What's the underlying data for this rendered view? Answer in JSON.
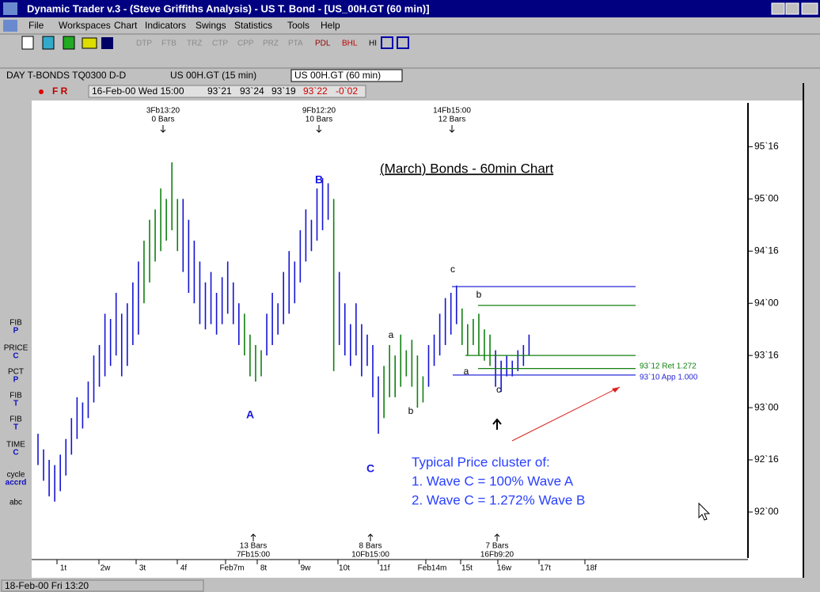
{
  "window": {
    "title": "Dynamic Trader v.3 - (Steve Griffiths Analysis) - US T. Bond - [US_00H.GT (60 min)]"
  },
  "menu": [
    "File",
    "Workspaces",
    "Chart",
    "Indicators",
    "Swings",
    "Statistics",
    "Tools",
    "Help"
  ],
  "toolbar": [
    "DTP",
    "FTB",
    "TRZ",
    "CTP",
    "CPP",
    "PRZ",
    "PTA",
    "PDL",
    "BHL",
    "HI"
  ],
  "tabs": [
    "DAY T-BONDS  TQ0300 D-D",
    "US 00H.GT (15 min)",
    "US 00H.GT (60 min)"
  ],
  "info": {
    "flags": "F R",
    "date": "16-Feb-00 Wed 15:00",
    "open": "93`21",
    "high": "93`24",
    "low": "93`19",
    "close": "93`22",
    "change": "-0`02"
  },
  "tools": [
    [
      "FIB",
      "P"
    ],
    [
      "PRICE",
      "C"
    ],
    [
      "PCT",
      "P"
    ],
    [
      "FIB",
      "T"
    ],
    [
      "FIB",
      "T"
    ],
    [
      "TIME",
      "C"
    ],
    [
      "cycle",
      "accrd"
    ],
    [
      "abc"
    ]
  ],
  "chart_data": {
    "type": "ohlc",
    "title": "(March) Bonds - 60min Chart",
    "ylim": [
      91.56,
      95.92
    ],
    "yticks": [
      {
        "value": 95.5,
        "label": "95`16"
      },
      {
        "value": 95,
        "label": "95`00"
      },
      {
        "value": 94.5,
        "label": "94`16"
      },
      {
        "value": 94,
        "label": "94`00"
      },
      {
        "value": 93.5,
        "label": "93`16"
      },
      {
        "value": 93,
        "label": "93`00"
      },
      {
        "value": 92.5,
        "label": "92`16"
      },
      {
        "value": 92,
        "label": "92`00"
      }
    ],
    "categories": [
      "1t",
      "2w",
      "3t",
      "4f",
      "Feb7m",
      "8t",
      "9w",
      "10t",
      "11f",
      "Feb14m",
      "15t",
      "16w",
      "17t",
      "18f"
    ],
    "segments": [
      {
        "color": "#1414d2",
        "high": [
          92.75,
          92.6,
          92.5,
          92.45,
          92.55,
          92.7,
          92.9,
          93.1,
          93.05,
          93.25,
          93.5,
          93.6,
          93.9,
          93.85,
          94.1,
          93.9,
          94.0,
          94.2,
          94.4
        ],
        "low": [
          92.45,
          92.3,
          92.15,
          92.1,
          92.2,
          92.35,
          92.55,
          92.7,
          92.8,
          92.9,
          93.05,
          93.2,
          93.3,
          93.4,
          93.5,
          93.3,
          93.4,
          93.6,
          93.7
        ]
      },
      {
        "color": "#108010",
        "high": [
          94.6,
          94.8,
          94.9,
          95.1,
          95.0,
          95.35,
          95.0
        ],
        "low": [
          94.0,
          94.2,
          94.4,
          94.5,
          94.6,
          94.7,
          94.5
        ]
      },
      {
        "color": "#1414d2",
        "high": [
          95.0,
          94.8,
          94.6,
          94.4,
          94.2,
          94.3,
          94.1,
          94.25,
          94.4,
          94.2,
          94.0
        ],
        "low": [
          94.3,
          94.1,
          94.0,
          93.8,
          93.75,
          93.8,
          93.7,
          93.8,
          93.9,
          93.8,
          93.6
        ]
      },
      {
        "color": "#108010",
        "high": [
          93.9,
          93.7,
          93.6,
          93.55
        ],
        "low": [
          93.5,
          93.3,
          93.25,
          93.3
        ]
      },
      {
        "color": "#1414d2",
        "high": [
          93.9,
          94.1,
          94.0,
          94.3,
          94.5,
          94.4,
          94.7,
          94.9,
          94.8,
          95.1,
          95.2,
          95.15
        ],
        "low": [
          93.5,
          93.6,
          93.7,
          93.8,
          93.9,
          94.0,
          94.2,
          94.4,
          94.5,
          94.6,
          94.7,
          94.8
        ]
      },
      {
        "color": "#108010",
        "high": [
          95.0
        ],
        "low": [
          93.35
        ]
      },
      {
        "color": "#1414d2",
        "high": [
          94.3,
          94.0,
          93.8,
          94.0,
          93.8,
          93.7,
          93.6,
          93.3
        ],
        "low": [
          93.6,
          93.5,
          93.4,
          93.5,
          93.3,
          93.4,
          93.1,
          92.75
        ]
      },
      {
        "color": "#108010",
        "high": [
          93.4,
          93.6,
          93.5,
          93.7,
          93.55,
          93.65,
          93.5,
          93.3
        ],
        "low": [
          92.9,
          93.1,
          93.1,
          93.2,
          93.3,
          93.2,
          93.0,
          93.05
        ]
      },
      {
        "color": "#1414d2",
        "high": [
          93.6,
          93.7,
          93.9,
          94.05,
          94.1,
          94.17
        ],
        "low": [
          93.2,
          93.4,
          93.5,
          93.6,
          93.7,
          93.8
        ]
      },
      {
        "color": "#108010",
        "high": [
          93.95,
          93.8,
          93.85,
          93.9,
          93.75,
          93.7
        ],
        "low": [
          93.6,
          93.5,
          93.6,
          93.5,
          93.45,
          93.4
        ]
      },
      {
        "color": "#1414d2",
        "high": [
          93.55,
          93.45,
          93.5,
          93.45,
          93.55,
          93.6,
          93.7
        ],
        "low": [
          93.2,
          93.15,
          93.3,
          93.3,
          93.35,
          93.4,
          93.5
        ]
      }
    ],
    "levels": [
      {
        "value": 94.16,
        "color": "#2828d8"
      },
      {
        "value": 93.98,
        "color": "#108010"
      },
      {
        "value": 93.5,
        "color": "#108010"
      },
      {
        "value": 93.375,
        "color": "#108010",
        "label": "93`12 Ret 1.272"
      },
      {
        "value": 93.3125,
        "color": "#2828d8",
        "label": "93`10 App 1.000"
      }
    ],
    "waves": [
      "B",
      "A",
      "C",
      "a",
      "b",
      "c",
      "b",
      "a",
      "c"
    ],
    "swings_top": [
      [
        "3Fb13:20",
        "0 Bars"
      ],
      [
        "9Fb12:20",
        "10 Bars"
      ],
      [
        "14Fb15:00",
        "12 Bars"
      ]
    ],
    "swings_bottom": [
      [
        "13 Bars",
        "7Fb15:00"
      ],
      [
        "8 Bars",
        "10Fb15:00"
      ],
      [
        "7 Bars",
        "16Fb9:20"
      ]
    ],
    "note": [
      "Typical Price cluster of:",
      "1. Wave C = 100% Wave A",
      "2. Wave C = 1.272% Wave B"
    ]
  },
  "status": "18-Feb-00 Fri 13:20"
}
